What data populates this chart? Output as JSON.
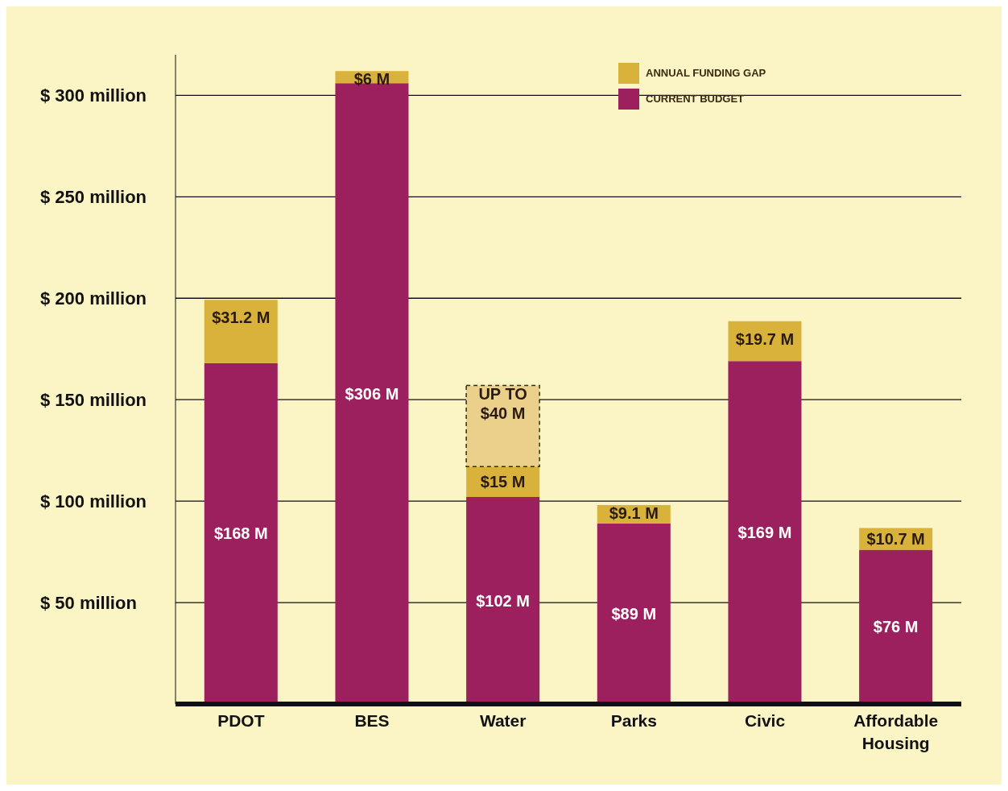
{
  "chart_data": {
    "type": "bar",
    "stacked": true,
    "categories": [
      "PDOT",
      "BES",
      "Water",
      "Parks",
      "Civic",
      "Affordable Housing"
    ],
    "series": [
      {
        "name": "CURRENT BUDGET",
        "color": "#9c1f5e",
        "values": [
          168,
          306,
          102,
          89,
          169,
          76
        ],
        "value_labels": [
          "$168 M",
          "$306 M",
          "$102 M",
          "$89 M",
          "$169 M",
          "$76 M"
        ]
      },
      {
        "name": "ANNUAL FUNDING GAP",
        "color": "#d9b23c",
        "values": [
          31.2,
          6,
          15,
          9.1,
          19.7,
          10.7
        ],
        "value_labels": [
          "$31.2 M",
          "$6 M",
          "$15 M",
          "$9.1 M",
          "$19.7 M",
          "$10.7 M"
        ]
      },
      {
        "color": "#ead08a",
        "line_style": "dashed",
        "values": [
          null,
          null,
          40,
          null,
          null,
          null
        ],
        "value_labels": [
          null,
          null,
          "UP TO $40 M",
          null,
          null,
          null
        ]
      }
    ],
    "ylim": [
      0,
      320
    ],
    "yticks": [
      {
        "value": 50,
        "label": "$  50 million"
      },
      {
        "value": 100,
        "label": "$ 100 million"
      },
      {
        "value": 150,
        "label": "$ 150 million"
      },
      {
        "value": 200,
        "label": "$ 200 million"
      },
      {
        "value": 250,
        "label": "$ 250 million"
      },
      {
        "value": 300,
        "label": "$ 300 million"
      }
    ],
    "grid": "y",
    "legend": "top"
  }
}
